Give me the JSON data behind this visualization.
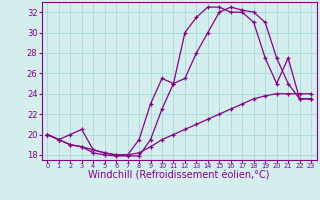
{
  "background_color": "#d4eeee",
  "grid_color": "#aadddd",
  "line_color": "#880088",
  "xlabel": "Windchill (Refroidissement éolien,°C)",
  "xlabel_fontsize": 7,
  "xlim": [
    -0.5,
    23.5
  ],
  "ylim": [
    17.5,
    33.0
  ],
  "yticks": [
    18,
    20,
    22,
    24,
    26,
    28,
    30,
    32
  ],
  "xticks": [
    0,
    1,
    2,
    3,
    4,
    5,
    6,
    7,
    8,
    9,
    10,
    11,
    12,
    13,
    14,
    15,
    16,
    17,
    18,
    19,
    20,
    21,
    22,
    23
  ],
  "series": [
    [
      20.0,
      19.5,
      19.0,
      18.8,
      18.2,
      18.0,
      17.9,
      17.9,
      17.9,
      19.5,
      22.5,
      25.0,
      25.5,
      28.0,
      30.0,
      32.0,
      32.5,
      32.2,
      32.0,
      31.0,
      27.5,
      25.0,
      23.5,
      23.5
    ],
    [
      20.0,
      19.5,
      19.0,
      18.8,
      18.5,
      18.2,
      18.0,
      18.0,
      18.2,
      18.8,
      19.5,
      20.0,
      20.5,
      21.0,
      21.5,
      22.0,
      22.5,
      23.0,
      23.5,
      23.8,
      24.0,
      24.0,
      24.0,
      24.0
    ],
    [
      20.0,
      19.5,
      20.0,
      20.5,
      18.5,
      18.2,
      18.0,
      18.0,
      19.5,
      23.0,
      25.5,
      25.0,
      30.0,
      31.5,
      32.5,
      32.5,
      32.0,
      32.0,
      31.0,
      27.5,
      25.0,
      27.5,
      23.5,
      23.5
    ]
  ]
}
